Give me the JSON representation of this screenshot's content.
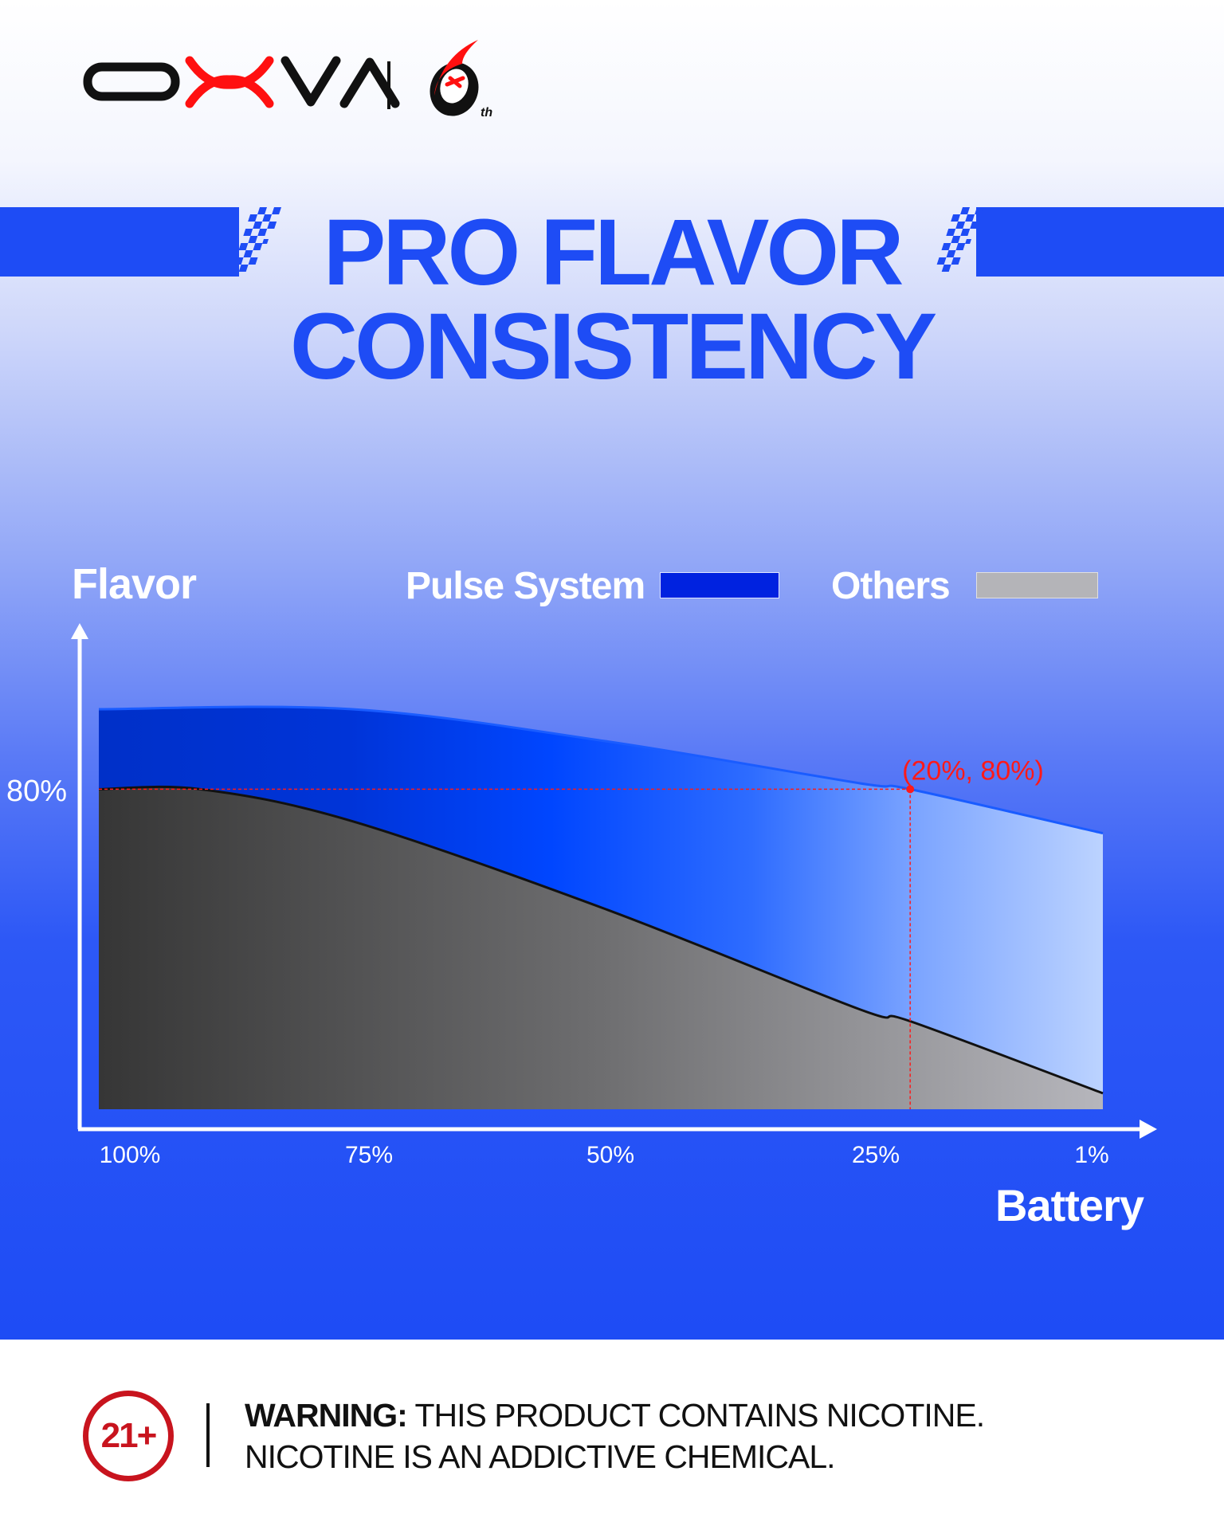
{
  "brand": {
    "logo_text": "OXVA",
    "anniversary_logo": "6th",
    "colors": {
      "black": "#111111",
      "red": "#ff1010"
    }
  },
  "header": {
    "title_line1": "PRO FLAVOR",
    "title_line2": "CONSISTENCY",
    "accent": "#1e4cf5"
  },
  "chart_data": {
    "type": "area",
    "title": "",
    "xlabel": "Battery",
    "ylabel": "Flavor",
    "x_ticks": [
      "100%",
      "75%",
      "50%",
      "25%",
      "1%"
    ],
    "y_ticks": [
      "80%"
    ],
    "xlim": [
      100,
      1
    ],
    "ylim": [
      0,
      100
    ],
    "grid": false,
    "legend_placement": "top",
    "series": [
      {
        "name": "Pulse System",
        "color": "#0022e0",
        "x": [
          100,
          75,
          50,
          25,
          20,
          1
        ],
        "y": [
          100,
          100,
          92,
          81.5,
          80,
          69
        ]
      },
      {
        "name": "Others",
        "color": "#b4b4b8",
        "x": [
          100,
          90,
          75,
          50,
          25,
          20,
          1
        ],
        "y": [
          80,
          80,
          72,
          50,
          25,
          22,
          4
        ]
      }
    ],
    "annotations": [
      {
        "label": "(20%, 80%)",
        "x": 20,
        "y": 80,
        "color": "#ff1a1a"
      }
    ]
  },
  "footer": {
    "age_badge": "21+",
    "warning_label": "WARNING:",
    "warning_line1": "THIS PRODUCT CONTAINS NICOTINE.",
    "warning_line2": "NICOTINE IS AN ADDICTIVE CHEMICAL."
  }
}
